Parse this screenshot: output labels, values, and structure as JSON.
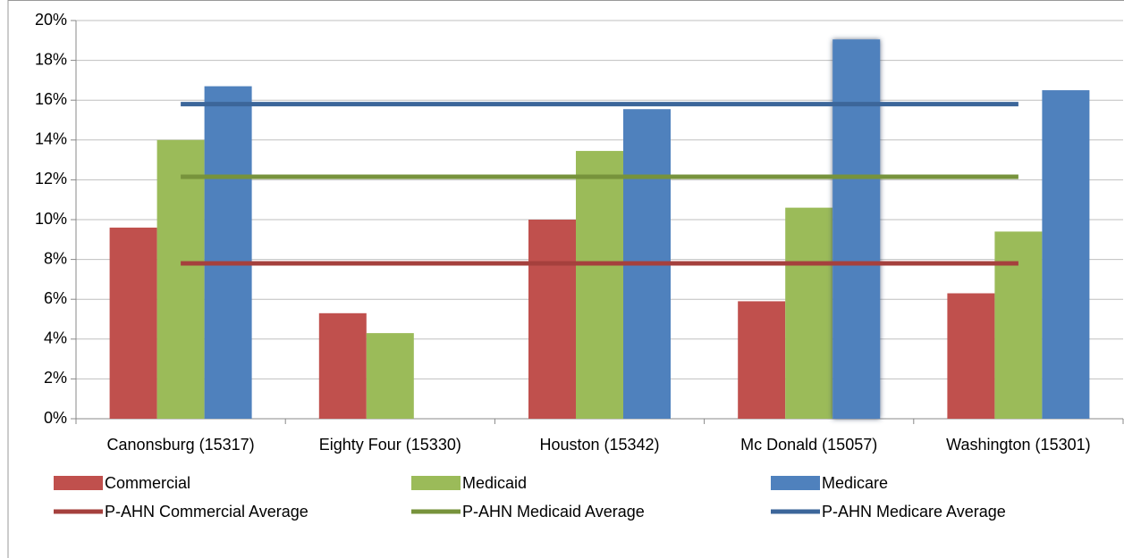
{
  "chart_data": {
    "type": "bar",
    "categories": [
      "Canonsburg (15317)",
      "Eighty Four (15330)",
      "Houston (15342)",
      "Mc Donald (15057)",
      "Washington (15301)"
    ],
    "series": [
      {
        "name": "Commercial",
        "color": "#c0504d",
        "values": [
          9.6,
          5.3,
          10.0,
          5.9,
          6.3
        ]
      },
      {
        "name": "Medicaid",
        "color": "#9bbb59",
        "values": [
          14.0,
          4.3,
          13.45,
          10.6,
          9.4
        ]
      },
      {
        "name": "Medicare",
        "color": "#4f81bd",
        "values": [
          16.7,
          null,
          15.55,
          19.05,
          16.5
        ]
      },
      {
        "name": "P-AHN Commercial Average",
        "type": "line",
        "color": "#a5403d",
        "values": [
          7.8,
          7.8,
          7.8,
          7.8,
          7.8
        ]
      },
      {
        "name": "P-AHN Medicaid Average",
        "type": "line",
        "color": "#77933c",
        "values": [
          12.15,
          12.15,
          12.15,
          12.15,
          12.15
        ]
      },
      {
        "name": "P-AHN Medicare Average",
        "type": "line",
        "color": "#3c669a",
        "values": [
          15.8,
          15.8,
          15.8,
          15.8,
          15.8
        ]
      }
    ],
    "ylim": [
      0,
      20
    ],
    "yticks": [
      {
        "value": 0,
        "label": "0%"
      },
      {
        "value": 2,
        "label": "2%"
      },
      {
        "value": 4,
        "label": "4%"
      },
      {
        "value": 6,
        "label": "6%"
      },
      {
        "value": 8,
        "label": "8%"
      },
      {
        "value": 10,
        "label": "10%"
      },
      {
        "value": 12,
        "label": "12%"
      },
      {
        "value": 14,
        "label": "14%"
      },
      {
        "value": 16,
        "label": "16%"
      },
      {
        "value": 18,
        "label": "18%"
      },
      {
        "value": 20,
        "label": "20%"
      }
    ],
    "grid": true,
    "legend": "bottom"
  }
}
